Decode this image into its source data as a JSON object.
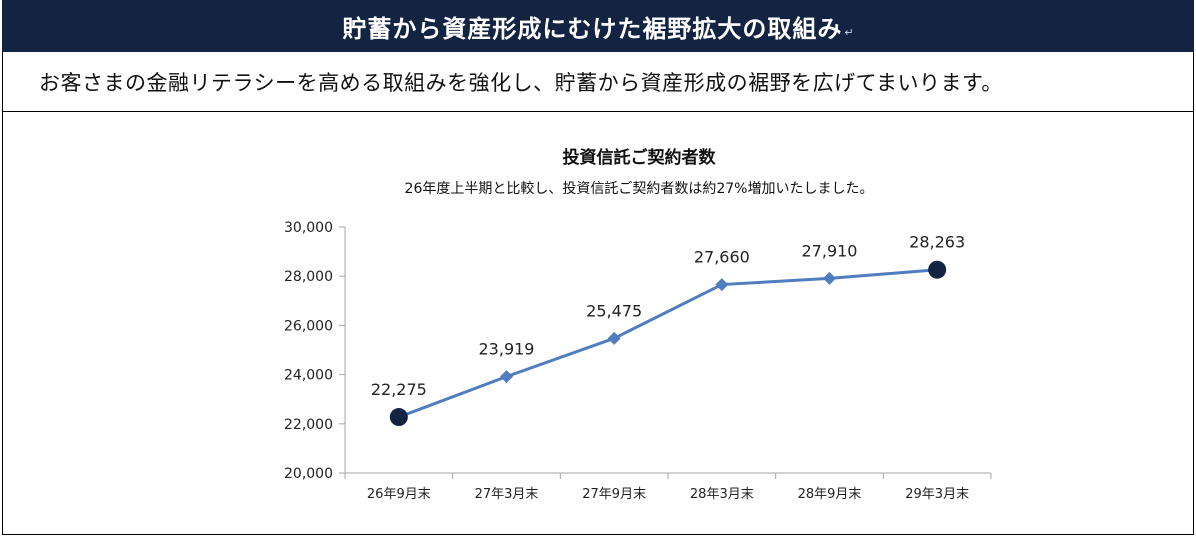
{
  "header": {
    "title": "貯蓄から資産形成にむけた裾野拡大の取組み",
    "mark": "↵"
  },
  "intro": {
    "text": "お客さまの金融リテラシーを高める取組みを強化し、貯蓄から資産形成の裾野を広げてまいります。"
  },
  "colors": {
    "header_bg": "#132443",
    "line": "#4F7DC0",
    "endpoint": "#132443"
  },
  "chart_data": {
    "type": "line",
    "title": "投資信託ご契約者数",
    "subtitle": "26年度上半期と比較し、投資信託ご契約者数は約27%増加いたしました。",
    "xlabel": "",
    "ylabel": "",
    "categories": [
      "26年9月末",
      "27年3月末",
      "27年9月末",
      "28年3月末",
      "28年9月末",
      "29年3月末"
    ],
    "series": [
      {
        "values": [
          22275,
          23919,
          25475,
          27660,
          27910,
          28263
        ],
        "labels": [
          "22,275",
          "23,919",
          "25,475",
          "27,660",
          "27,910",
          "28,263"
        ],
        "markers": [
          "circle",
          "diamond",
          "diamond",
          "diamond",
          "diamond",
          "circle"
        ]
      }
    ],
    "ylim": [
      20000,
      30000
    ],
    "yticks": [
      20000,
      22000,
      24000,
      26000,
      28000,
      30000
    ],
    "ytick_labels": [
      "20,000",
      "22,000",
      "24,000",
      "26,000",
      "28,000",
      "30,000"
    ],
    "grid": false,
    "legend": "none"
  }
}
